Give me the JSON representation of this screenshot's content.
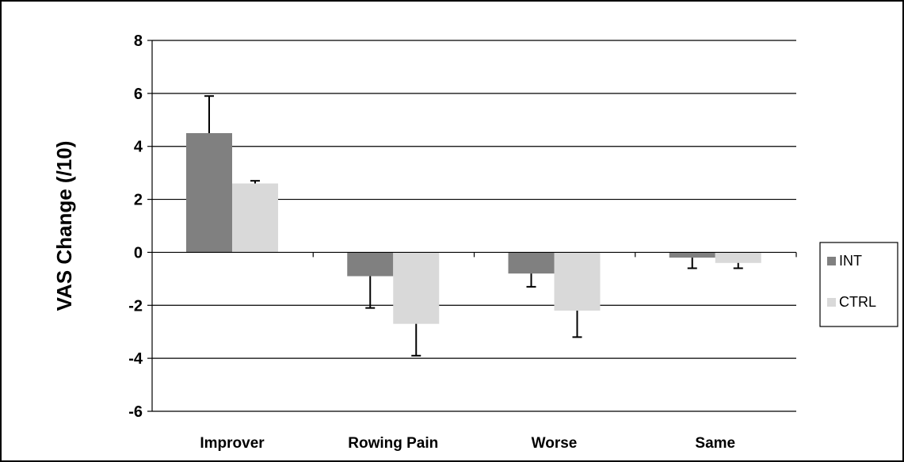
{
  "chart_data": {
    "type": "bar",
    "title": "",
    "xlabel": "",
    "ylabel": "VAS Change (/10)",
    "ylim": [
      -6,
      8
    ],
    "yticks": [
      8,
      6,
      4,
      2,
      0,
      -2,
      -4,
      -6
    ],
    "grid": true,
    "legend_position": "right",
    "categories": [
      "Improver",
      "Rowing Pain",
      "Worse",
      "Same"
    ],
    "series": [
      {
        "name": "INT",
        "color": "#808080",
        "values": [
          4.5,
          -0.9,
          -0.8,
          -0.2
        ],
        "error": [
          1.4,
          1.2,
          0.5,
          0.4
        ]
      },
      {
        "name": "CTRL",
        "color": "#d9d9d9",
        "values": [
          2.6,
          -2.7,
          -2.2,
          -0.4
        ],
        "error": [
          0.1,
          1.2,
          1.0,
          0.2
        ]
      }
    ]
  }
}
